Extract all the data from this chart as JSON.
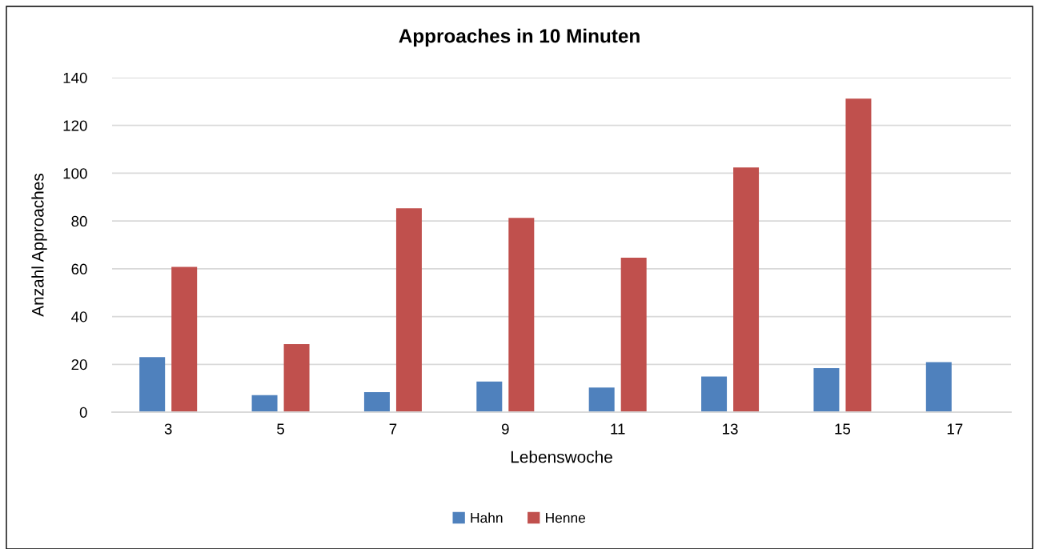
{
  "chart_data": {
    "type": "bar",
    "title": "Approaches in 10 Minuten",
    "xlabel": "Lebenswoche",
    "ylabel": "Anzahl Approaches",
    "categories": [
      "3",
      "5",
      "7",
      "9",
      "11",
      "13",
      "15",
      "17"
    ],
    "series": [
      {
        "name": "Hahn",
        "color": "#4f81bd",
        "values": [
          23,
          7.1,
          8.4,
          12.8,
          10.3,
          14.9,
          18.4,
          20.9
        ]
      },
      {
        "name": "Henne",
        "color": "#c0504d",
        "values": [
          60.8,
          28.5,
          85.3,
          81.3,
          64.6,
          102.4,
          131.2,
          null
        ]
      }
    ],
    "ylim": [
      0,
      140
    ],
    "yticks": [
      0,
      20,
      40,
      60,
      80,
      100,
      120,
      140
    ],
    "grid": "y",
    "legend": "bottom"
  }
}
